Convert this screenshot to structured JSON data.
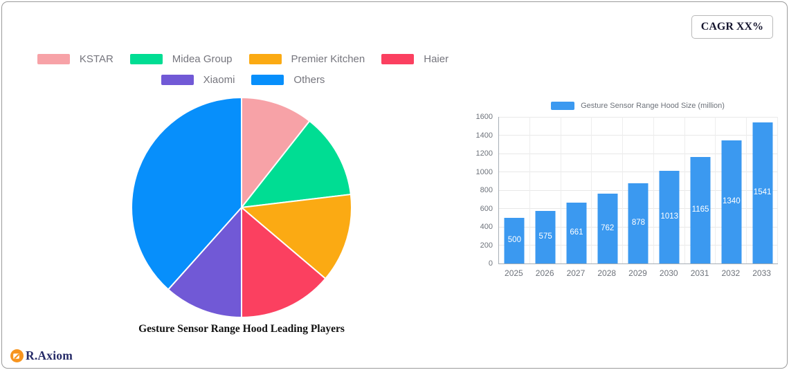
{
  "card": {
    "cagr_badge": "CAGR XX%"
  },
  "footer": {
    "brand": "R.Axiom",
    "icon_color": "#f7941e"
  },
  "chart_data": [
    {
      "type": "pie",
      "title": "Gesture Sensor Range Hood Leading Players",
      "legend_position": "top",
      "direction": "clockwise",
      "start_angle_deg": 0,
      "slices": [
        {
          "label": "KSTAR",
          "value": 10.6,
          "color": "#f7a2a7"
        },
        {
          "label": "Midea Group",
          "value": 12.5,
          "color": "#00dd93"
        },
        {
          "label": "Premier Kitchen",
          "value": 13.1,
          "color": "#fbaa13"
        },
        {
          "label": "Haier",
          "value": 13.8,
          "color": "#fb4060"
        },
        {
          "label": "Xiaomi",
          "value": 11.6,
          "color": "#7159d6"
        },
        {
          "label": "Others",
          "value": 38.4,
          "color": "#078ffb"
        }
      ]
    },
    {
      "type": "bar",
      "legend": "Gesture Sensor Range Hood Size (million)",
      "legend_position": "top",
      "categories": [
        "2025",
        "2026",
        "2027",
        "2028",
        "2029",
        "2030",
        "2031",
        "2032",
        "2033"
      ],
      "values": [
        500,
        575,
        661,
        762,
        878,
        1013,
        1165,
        1340,
        1541
      ],
      "bar_color": "#3b99f0",
      "data_label_color": "#ffffff",
      "ylim": [
        0,
        1600
      ],
      "yticks": [
        0,
        200,
        400,
        600,
        800,
        1000,
        1200,
        1400,
        1600
      ],
      "grid": true
    }
  ]
}
